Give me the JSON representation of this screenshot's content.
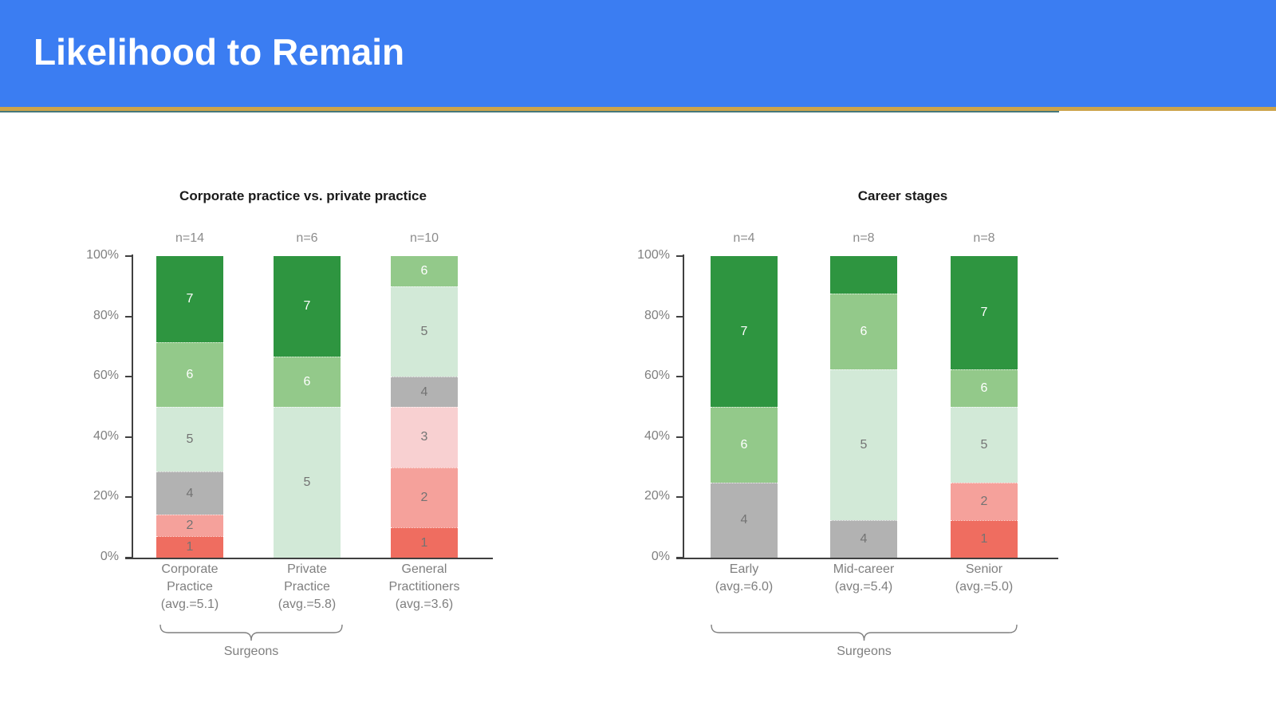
{
  "header": {
    "title": "Likelihood to Remain",
    "bg_color": "#3b7df2",
    "accent_line_color": "#cda44a",
    "accent_line2_color": "#46787a"
  },
  "score_colors": {
    "1": "#ef6d60",
    "2": "#f5a19b",
    "3": "#f8d0d1",
    "4": "#b2b2b2",
    "5": "#d2e9d7",
    "6": "#93c98a",
    "7": "#2e9540"
  },
  "score_label_colors": {
    "dark_segments": "#ffffff",
    "light_segments": "#737373"
  },
  "axis_color": "#404040",
  "text_colors": {
    "chart_title": "#1a1a1a",
    "tick_label": "#808080",
    "n_label": "#8c8c8c",
    "category_label": "#7f7f7f",
    "brace_label": "#7f7f7f"
  },
  "chart_data": [
    {
      "type": "bar",
      "stacked": true,
      "title": "Corporate practice vs. private practice",
      "ylim": [
        0,
        100
      ],
      "y_ticks": [
        "0%",
        "20%",
        "40%",
        "60%",
        "80%",
        "100%"
      ],
      "grid": false,
      "legend": "none",
      "categories": [
        {
          "n": "n=14",
          "name_lines": [
            "Corporate",
            "Practice",
            "(avg.=5.1)"
          ],
          "segments": [
            {
              "value": 1,
              "count": 1
            },
            {
              "value": 2,
              "count": 1
            },
            {
              "value": 4,
              "count": 2
            },
            {
              "value": 5,
              "count": 3
            },
            {
              "value": 6,
              "count": 3
            },
            {
              "value": 7,
              "count": 4
            }
          ]
        },
        {
          "n": "n=6",
          "name_lines": [
            "Private",
            "Practice",
            "(avg.=5.8)"
          ],
          "segments": [
            {
              "value": 5,
              "count": 3
            },
            {
              "value": 6,
              "count": 1
            },
            {
              "value": 7,
              "count": 2
            }
          ]
        },
        {
          "n": "n=10",
          "name_lines": [
            "General",
            "Practitioners",
            "(avg.=3.6)"
          ],
          "segments": [
            {
              "value": 1,
              "count": 1
            },
            {
              "value": 2,
              "count": 2
            },
            {
              "value": 3,
              "count": 2
            },
            {
              "value": 4,
              "count": 1
            },
            {
              "value": 5,
              "count": 3
            },
            {
              "value": 6,
              "count": 1
            }
          ]
        }
      ],
      "brace": {
        "label": "Surgeons",
        "covers": [
          "Corporate Practice",
          "Private Practice"
        ]
      }
    },
    {
      "type": "bar",
      "stacked": true,
      "title": "Career stages",
      "ylim": [
        0,
        100
      ],
      "y_ticks": [
        "0%",
        "20%",
        "40%",
        "60%",
        "80%",
        "100%"
      ],
      "grid": false,
      "legend": "none",
      "categories": [
        {
          "n": "n=4",
          "name_lines": [
            "Early",
            "(avg.=6.0)"
          ],
          "segments": [
            {
              "value": 4,
              "count": 1
            },
            {
              "value": 6,
              "count": 1
            },
            {
              "value": 7,
              "count": 2
            }
          ]
        },
        {
          "n": "n=8",
          "name_lines": [
            "Mid-career",
            "(avg.=5.4)"
          ],
          "segments": [
            {
              "value": 4,
              "count": 1
            },
            {
              "value": 5,
              "count": 4
            },
            {
              "value": 6,
              "count": 2
            },
            {
              "value": 7,
              "count": 1,
              "show_label": false
            }
          ]
        },
        {
          "n": "n=8",
          "name_lines": [
            "Senior",
            "(avg.=5.0)"
          ],
          "segments": [
            {
              "value": 1,
              "count": 1
            },
            {
              "value": 2,
              "count": 1
            },
            {
              "value": 5,
              "count": 2
            },
            {
              "value": 6,
              "count": 1
            },
            {
              "value": 7,
              "count": 3
            }
          ]
        }
      ],
      "brace": {
        "label": "Surgeons",
        "covers": [
          "Early",
          "Mid-career",
          "Senior"
        ]
      }
    }
  ]
}
